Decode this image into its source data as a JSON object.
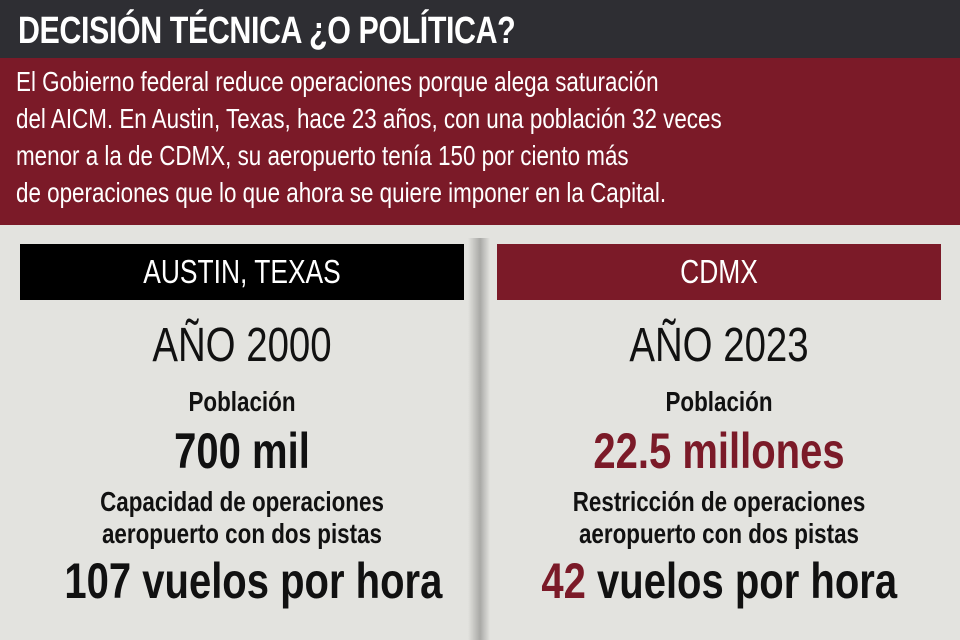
{
  "title": "DECISIÓN TÉCNICA ¿O POLÍTICA?",
  "intro_lines": [
    "El Gobierno federal reduce operaciones porque alega saturación",
    "del AICM. En Austin, Texas, hace 23 años, con una población 32 veces",
    "menor a la de CDMX, su aeropuerto tenía 150 por ciento más",
    "de operaciones que lo que ahora se quiere imponer en la Capital."
  ],
  "colors": {
    "dark": "#2e2e33",
    "accent_red": "#7b1a28",
    "background": "#e3e3df"
  },
  "left": {
    "header": "AUSTIN, TEXAS",
    "year": "AÑO 2000",
    "population_label": "Población",
    "population_value": "700 mil",
    "capacity_line1": "Capacidad de operaciones",
    "capacity_line2": "aeropuerto con dos pistas",
    "flights_number": "107",
    "flights_unit": " vuelos por hora"
  },
  "right": {
    "header": "CDMX",
    "year": "AÑO 2023",
    "population_label": "Población",
    "population_value": "22.5 millones",
    "capacity_line1": "Restricción de operaciones",
    "capacity_line2": "aeropuerto con dos pistas",
    "flights_number": "42",
    "flights_unit": " vuelos por hora"
  }
}
